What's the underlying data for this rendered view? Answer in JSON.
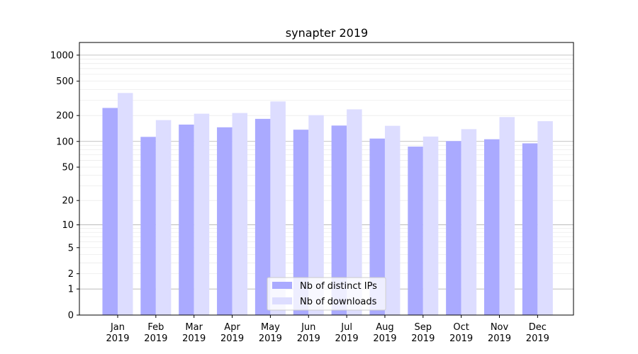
{
  "chart_data": {
    "type": "bar",
    "title": "synapter 2019",
    "xlabel": "",
    "ylabel": "",
    "scale": "log1p",
    "ylim": [
      0,
      1400
    ],
    "grid": true,
    "legend_position": "bottom-center",
    "y_ticks": [
      0,
      1,
      2,
      5,
      10,
      20,
      50,
      100,
      200,
      500,
      1000
    ],
    "y_tick_labels": [
      "0",
      "1",
      "2",
      "5",
      "10",
      "20",
      "50",
      "100",
      "200",
      "500",
      "1000"
    ],
    "categories": [
      "Jan\n2019",
      "Feb\n2019",
      "Mar\n2019",
      "Apr\n2019",
      "May\n2019",
      "Jun\n2019",
      "Jul\n2019",
      "Aug\n2019",
      "Sep\n2019",
      "Oct\n2019",
      "Nov\n2019",
      "Dec\n2019"
    ],
    "series": [
      {
        "name": "Nb of distinct IPs",
        "color": "#aaaaff",
        "values": [
          245,
          113,
          157,
          146,
          183,
          137,
          153,
          108,
          87,
          101,
          106,
          95
        ]
      },
      {
        "name": "Nb of downloads",
        "color": "#ddddff",
        "values": [
          365,
          177,
          210,
          214,
          291,
          202,
          236,
          152,
          114,
          139,
          192,
          172
        ]
      }
    ]
  }
}
